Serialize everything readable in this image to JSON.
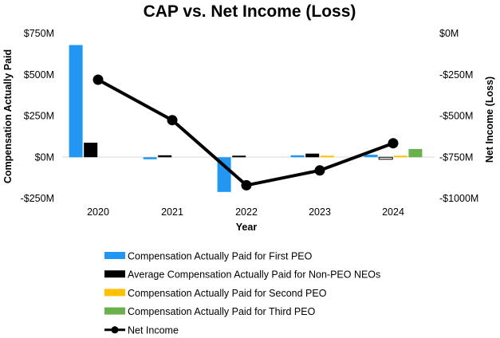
{
  "chart_data": {
    "type": "bar",
    "title": "CAP vs. Net Income (Loss)",
    "xlabel": "Year",
    "ylabel_left": "Compensation Actually Paid",
    "ylabel_right": "Net Income (Loss)",
    "categories": [
      "2020",
      "2021",
      "2022",
      "2023",
      "2024"
    ],
    "left_axis": {
      "ylim": [
        -250,
        750
      ],
      "ticks": [
        750,
        500,
        250,
        0,
        -250
      ],
      "tick_labels": [
        "$750M",
        "$500M",
        "$250M",
        "$0M",
        "-$250M"
      ]
    },
    "right_axis": {
      "ylim": [
        -1000,
        0
      ],
      "ticks": [
        0,
        -250,
        -500,
        -750,
        -1000
      ],
      "tick_labels": [
        "$0M",
        "-$250M",
        "-$500M",
        "-$750M",
        "-$1000M"
      ]
    },
    "series": [
      {
        "name": "Compensation Actually Paid for First PEO",
        "type": "bar",
        "axis": "left",
        "color": "#2196F3",
        "values": [
          680,
          -12,
          -210,
          12,
          15
        ]
      },
      {
        "name": "Average Compensation Actually Paid for Non-PEO NEOs",
        "type": "bar",
        "axis": "left",
        "color": "#000000",
        "values": [
          88,
          12,
          3,
          22,
          -12
        ]
      },
      {
        "name": "Compensation Actually Paid for Second PEO",
        "type": "bar",
        "axis": "left",
        "color": "#FFC000",
        "values": [
          null,
          null,
          null,
          3,
          3
        ]
      },
      {
        "name": "Compensation Actually Paid for Third PEO",
        "type": "bar",
        "axis": "left",
        "color": "#6AB04C",
        "values": [
          null,
          null,
          null,
          null,
          50
        ]
      },
      {
        "name": "Net Income",
        "type": "line",
        "axis": "right",
        "color": "#000000",
        "values": [
          -280,
          -525,
          -920,
          -830,
          -665
        ]
      }
    ],
    "legend_position": "bottom",
    "grid": false
  }
}
